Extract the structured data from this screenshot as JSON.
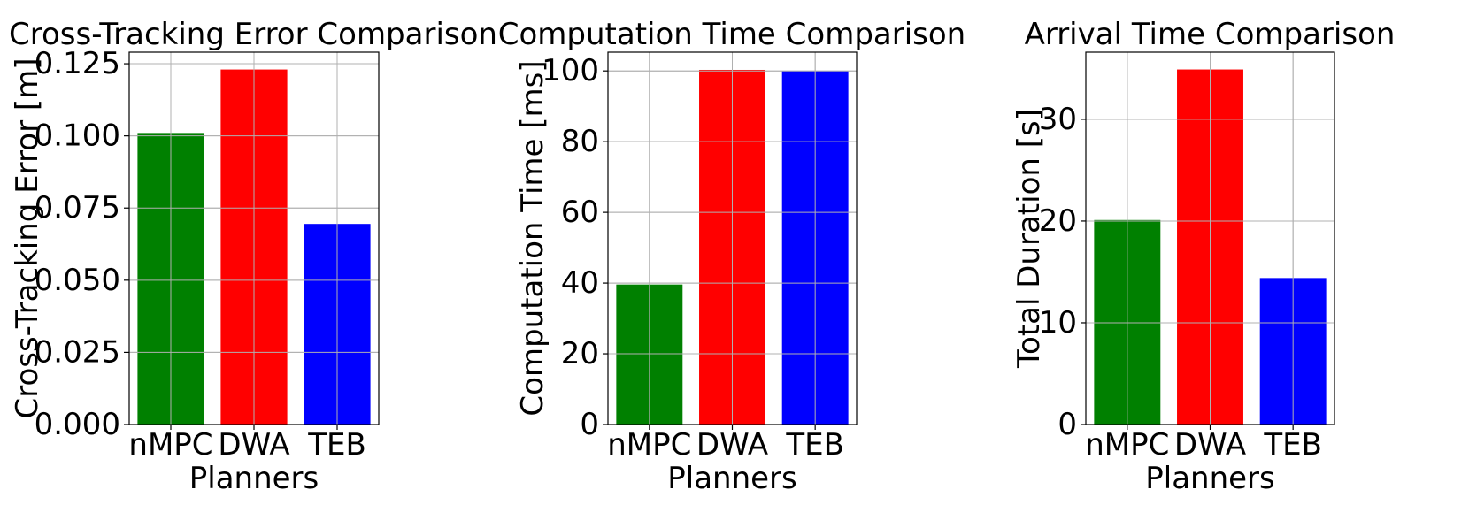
{
  "colors": {
    "nMPC": "#008000",
    "DWA": "#ff0000",
    "TEB": "#0000ff",
    "grid": "#b0b0b0"
  },
  "chart_data": [
    {
      "type": "bar",
      "title": "Cross-Tracking Error Comparison",
      "xlabel": "Planners",
      "ylabel": "Cross-Tracking Error [m]",
      "categories": [
        "nMPC",
        "DWA",
        "TEB"
      ],
      "values": [
        0.101,
        0.123,
        0.0695
      ],
      "ylim": [
        0,
        0.129
      ],
      "yticks": [
        0,
        0.025,
        0.05,
        0.075,
        0.1,
        0.125
      ],
      "ytick_labels": [
        "0.000",
        "0.025",
        "0.050",
        "0.075",
        "0.100",
        "0.125"
      ],
      "grid": true
    },
    {
      "type": "bar",
      "title": "Computation Time Comparison",
      "xlabel": "Planners",
      "ylabel": "Computation Time [ms]",
      "categories": [
        "nMPC",
        "DWA",
        "TEB"
      ],
      "values": [
        39.6,
        100.3,
        100.0
      ],
      "ylim": [
        0,
        105.3
      ],
      "yticks": [
        0,
        20,
        40,
        60,
        80,
        100
      ],
      "ytick_labels": [
        "0",
        "20",
        "40",
        "60",
        "80",
        "100"
      ],
      "grid": true
    },
    {
      "type": "bar",
      "title": "Arrival Time Comparison",
      "xlabel": "Planners",
      "ylabel": "Total Duration [s]",
      "categories": [
        "nMPC",
        "DWA",
        "TEB"
      ],
      "values": [
        20.1,
        34.9,
        14.4
      ],
      "ylim": [
        0,
        36.6
      ],
      "yticks": [
        0,
        10,
        20,
        30
      ],
      "ytick_labels": [
        "0",
        "10",
        "20",
        "30"
      ],
      "grid": true
    }
  ]
}
